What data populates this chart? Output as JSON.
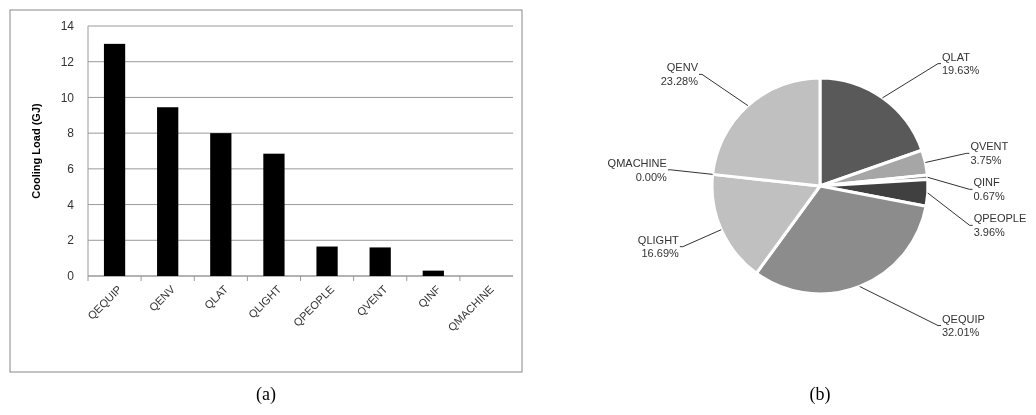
{
  "chart_data": [
    {
      "type": "bar",
      "ylabel": "Cooling Load (GJ)",
      "categories": [
        "QEQUIP",
        "QENV",
        "QLAT",
        "QLIGHT",
        "QPEOPLE",
        "QVENT",
        "QINF",
        "QMACHINE"
      ],
      "values": [
        13.0,
        9.45,
        8.0,
        6.85,
        1.65,
        1.6,
        0.3,
        0
      ],
      "color": "#000000",
      "ylim": [
        0,
        14
      ],
      "yticks": [
        0,
        2,
        4,
        6,
        8,
        10,
        12,
        14
      ],
      "grid": "y",
      "annotations": [
        "(a)"
      ]
    },
    {
      "type": "pie",
      "categories": [
        "QLAT",
        "QVENT",
        "QINF",
        "QPEOPLE",
        "QEQUIP",
        "QLIGHT",
        "QMACHINE",
        "QENV"
      ],
      "values": [
        19.63,
        3.75,
        0.67,
        3.96,
        32.01,
        16.69,
        0.0,
        23.28
      ],
      "colors": [
        "#595959",
        "#a6a6a6",
        "#7f7f7f",
        "#404040",
        "#8c8c8c",
        "#c0c0c0",
        null,
        "#c0c0c0"
      ],
      "value_labels": [
        "19.63%",
        "3.75%",
        "0.67%",
        "3.96%",
        "32.01%",
        "16.69%",
        "0.00%",
        "23.28%"
      ],
      "annotations": [
        "(b)"
      ]
    }
  ]
}
